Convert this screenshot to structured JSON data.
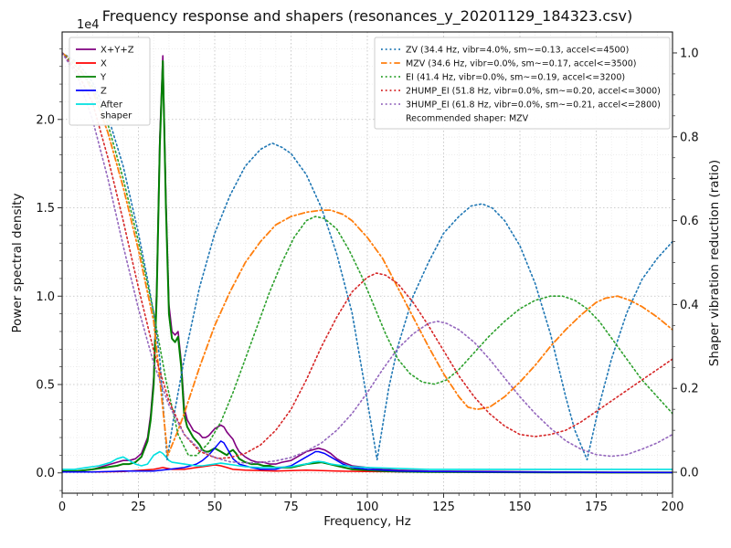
{
  "chart_data": {
    "type": "line",
    "title": "Frequency response and shapers (resonances_y_20201129_184323.csv)",
    "xlabel": "Frequency, Hz",
    "ylabel_left": "Power spectral density",
    "ylabel_right": "Shaper vibration reduction (ratio)",
    "y_left_scale_label": "1e4",
    "xlim": [
      0,
      200
    ],
    "ylim_left": [
      -0.115,
      2.495
    ],
    "ylim_right": [
      -0.05,
      1.05
    ],
    "xticks": [
      0,
      25,
      50,
      75,
      100,
      125,
      150,
      175,
      200
    ],
    "yticks_left": [
      "0.0",
      "0.5",
      "1.0",
      "1.5",
      "2.0"
    ],
    "yticks_left_vals": [
      0,
      0.5,
      1,
      1.5,
      2
    ],
    "yticks_right": [
      "0.0",
      "0.2",
      "0.4",
      "0.6",
      "0.8",
      "1.0"
    ],
    "yticks_right_vals": [
      0,
      0.2,
      0.4,
      0.6,
      0.8,
      1.0
    ],
    "grid": true,
    "legend_left": {
      "entries": [
        {
          "label": "X+Y+Z",
          "color": "#800080",
          "style": "solid"
        },
        {
          "label": "X",
          "color": "#ff0000",
          "style": "solid"
        },
        {
          "label": "Y",
          "color": "#008000",
          "style": "solid"
        },
        {
          "label": "Z",
          "color": "#0000ff",
          "style": "solid"
        },
        {
          "label": "After\nshaper",
          "color": "#00e0e0",
          "style": "solid"
        }
      ]
    },
    "legend_right": {
      "entries": [
        {
          "label": "ZV (34.4 Hz, vibr=4.0%, sm~=0.13, accel<=4500)",
          "color": "#1f77b4",
          "style": "dotted"
        },
        {
          "label": "MZV (34.6 Hz, vibr=0.0%, sm~=0.17, accel<=3500)",
          "color": "#ff7f0e",
          "style": "dashdot"
        },
        {
          "label": "EI (41.4 Hz, vibr=0.0%, sm~=0.19, accel<=3200)",
          "color": "#2ca02c",
          "style": "dotted"
        },
        {
          "label": "2HUMP_EI (51.8 Hz, vibr=0.0%, sm~=0.20, accel<=3000)",
          "color": "#d62728",
          "style": "dotted"
        },
        {
          "label": "3HUMP_EI (61.8 Hz, vibr=0.0%, sm~=0.21, accel<=2800)",
          "color": "#9467bd",
          "style": "dotted"
        },
        {
          "label": "Recommended shaper: MZV",
          "color": null,
          "style": "none"
        }
      ]
    },
    "series": [
      {
        "name": "X+Y+Z",
        "axis": "left",
        "color": "#800080",
        "style": "solid",
        "width": 1.6,
        "x": [
          0,
          5,
          10,
          14,
          18,
          20,
          22,
          24,
          26,
          28,
          29,
          30,
          31,
          32,
          33,
          34,
          35,
          36,
          37,
          38,
          39,
          40,
          41,
          42,
          43,
          44,
          45,
          46,
          47,
          48,
          49,
          50,
          51,
          52,
          53,
          54,
          55,
          56,
          57,
          58,
          60,
          62,
          64,
          66,
          68,
          70,
          72,
          75,
          78,
          80,
          82,
          84,
          86,
          88,
          90,
          92,
          95,
          100,
          105,
          110,
          120,
          140,
          160,
          180,
          200
        ],
        "y": [
          0.01,
          0.01,
          0.02,
          0.04,
          0.06,
          0.07,
          0.07,
          0.08,
          0.11,
          0.2,
          0.33,
          0.54,
          1.05,
          1.9,
          2.36,
          1.55,
          0.95,
          0.8,
          0.78,
          0.8,
          0.63,
          0.37,
          0.3,
          0.27,
          0.24,
          0.23,
          0.22,
          0.2,
          0.2,
          0.21,
          0.23,
          0.25,
          0.26,
          0.27,
          0.26,
          0.23,
          0.21,
          0.19,
          0.15,
          0.12,
          0.09,
          0.07,
          0.06,
          0.06,
          0.05,
          0.05,
          0.06,
          0.07,
          0.1,
          0.12,
          0.13,
          0.14,
          0.13,
          0.11,
          0.08,
          0.06,
          0.04,
          0.03,
          0.02,
          0.015,
          0.01,
          0.008,
          0.005,
          0.004,
          0.003
        ]
      },
      {
        "name": "X",
        "axis": "left",
        "color": "#ff0000",
        "style": "solid",
        "width": 1.5,
        "x": [
          0,
          10,
          20,
          30,
          33,
          36,
          40,
          44,
          46,
          48,
          50,
          52,
          54,
          56,
          60,
          70,
          80,
          90,
          100,
          120,
          140,
          160,
          180,
          200
        ],
        "y": [
          0.005,
          0.005,
          0.008,
          0.02,
          0.03,
          0.02,
          0.02,
          0.03,
          0.035,
          0.04,
          0.045,
          0.04,
          0.03,
          0.02,
          0.015,
          0.01,
          0.015,
          0.01,
          0.008,
          0.005,
          0.004,
          0.003,
          0.002,
          0.002
        ]
      },
      {
        "name": "Y",
        "axis": "left",
        "color": "#008000",
        "style": "solid",
        "width": 2,
        "x": [
          0,
          5,
          10,
          14,
          18,
          20,
          22,
          24,
          26,
          28,
          29,
          30,
          31,
          32,
          33,
          34,
          35,
          36,
          37,
          38,
          39,
          40,
          41,
          42,
          43,
          44,
          45,
          46,
          47,
          48,
          49,
          50,
          51,
          52,
          53,
          54,
          55,
          56,
          57,
          58,
          60,
          62,
          64,
          66,
          68,
          70,
          75,
          80,
          85,
          90,
          95,
          100,
          105,
          110,
          120,
          140,
          160,
          180,
          200
        ],
        "y": [
          0.01,
          0.01,
          0.02,
          0.03,
          0.04,
          0.05,
          0.05,
          0.06,
          0.09,
          0.18,
          0.3,
          0.5,
          1.0,
          1.85,
          2.33,
          1.5,
          0.9,
          0.76,
          0.74,
          0.77,
          0.6,
          0.33,
          0.26,
          0.23,
          0.2,
          0.18,
          0.16,
          0.13,
          0.12,
          0.12,
          0.13,
          0.14,
          0.13,
          0.12,
          0.11,
          0.1,
          0.12,
          0.13,
          0.11,
          0.08,
          0.06,
          0.05,
          0.05,
          0.04,
          0.04,
          0.03,
          0.03,
          0.05,
          0.06,
          0.04,
          0.02,
          0.015,
          0.01,
          0.008,
          0.005,
          0.004,
          0.003,
          0.002,
          0.002
        ]
      },
      {
        "name": "Z",
        "axis": "left",
        "color": "#0000ff",
        "style": "solid",
        "width": 1.5,
        "x": [
          0,
          10,
          20,
          30,
          35,
          40,
          42,
          44,
          46,
          48,
          50,
          51,
          52,
          53,
          54,
          55,
          56,
          58,
          60,
          62,
          65,
          70,
          72,
          75,
          78,
          80,
          82,
          83,
          84,
          86,
          88,
          90,
          92,
          95,
          100,
          105,
          110,
          120,
          140,
          160,
          180,
          200
        ],
        "y": [
          0.005,
          0.005,
          0.01,
          0.01,
          0.02,
          0.03,
          0.04,
          0.05,
          0.07,
          0.1,
          0.14,
          0.16,
          0.18,
          0.17,
          0.14,
          0.11,
          0.08,
          0.05,
          0.04,
          0.03,
          0.02,
          0.02,
          0.03,
          0.04,
          0.07,
          0.09,
          0.11,
          0.12,
          0.12,
          0.11,
          0.09,
          0.07,
          0.05,
          0.03,
          0.02,
          0.015,
          0.01,
          0.008,
          0.005,
          0.004,
          0.003,
          0.002
        ]
      },
      {
        "name": "After shaper",
        "axis": "left",
        "color": "#00e0e0",
        "style": "solid",
        "width": 1.6,
        "x": [
          0,
          4,
          8,
          12,
          14,
          16,
          18,
          20,
          22,
          24,
          26,
          28,
          30,
          31,
          32,
          33,
          34,
          35,
          36,
          38,
          40,
          42,
          44,
          46,
          48,
          50,
          52,
          54,
          56,
          58,
          60,
          65,
          70,
          75,
          78,
          80,
          82,
          84,
          86,
          88,
          90,
          95,
          100,
          110,
          120,
          140,
          160,
          180,
          200
        ],
        "y": [
          0.02,
          0.02,
          0.03,
          0.04,
          0.05,
          0.06,
          0.08,
          0.09,
          0.07,
          0.05,
          0.04,
          0.05,
          0.1,
          0.11,
          0.12,
          0.11,
          0.09,
          0.07,
          0.06,
          0.055,
          0.05,
          0.045,
          0.04,
          0.04,
          0.045,
          0.05,
          0.055,
          0.05,
          0.045,
          0.04,
          0.035,
          0.03,
          0.03,
          0.035,
          0.045,
          0.05,
          0.06,
          0.065,
          0.06,
          0.05,
          0.045,
          0.035,
          0.03,
          0.025,
          0.02,
          0.02,
          0.02,
          0.02,
          0.02
        ]
      },
      {
        "name": "ZV",
        "axis": "right",
        "color": "#1f77b4",
        "style": "dotted",
        "width": 1.6,
        "x": [
          0,
          5,
          10,
          15,
          20,
          25,
          28,
          30,
          32,
          34.4,
          37,
          40,
          45,
          50,
          55,
          60,
          65,
          68.8,
          72,
          75,
          80,
          85,
          90,
          95,
          100,
          103.2,
          107,
          110,
          115,
          120,
          125,
          130,
          134,
          137.6,
          141,
          145,
          150,
          155,
          160,
          165,
          168,
          172,
          176,
          180,
          185,
          190,
          195,
          200
        ],
        "y": [
          1.0,
          0.978,
          0.93,
          0.85,
          0.73,
          0.57,
          0.46,
          0.38,
          0.27,
          0.03,
          0.15,
          0.27,
          0.44,
          0.57,
          0.66,
          0.73,
          0.77,
          0.785,
          0.775,
          0.76,
          0.71,
          0.63,
          0.52,
          0.38,
          0.17,
          0.03,
          0.2,
          0.3,
          0.42,
          0.5,
          0.57,
          0.61,
          0.635,
          0.64,
          0.63,
          0.6,
          0.54,
          0.45,
          0.33,
          0.18,
          0.1,
          0.03,
          0.16,
          0.27,
          0.38,
          0.46,
          0.51,
          0.55
        ]
      },
      {
        "name": "MZV",
        "axis": "right",
        "color": "#ff7f0e",
        "style": "dashdot",
        "width": 1.8,
        "x": [
          0,
          5,
          10,
          15,
          20,
          25,
          30,
          34.6,
          38,
          40,
          45,
          50,
          55,
          60,
          65,
          70,
          75,
          80,
          85,
          88,
          92,
          95,
          100,
          105,
          110,
          115,
          120,
          125,
          130,
          133,
          136,
          140,
          145,
          150,
          155,
          160,
          165,
          170,
          175,
          178,
          182,
          186,
          190,
          195,
          200
        ],
        "y": [
          1.0,
          0.972,
          0.91,
          0.81,
          0.68,
          0.53,
          0.36,
          0.04,
          0.1,
          0.14,
          0.25,
          0.35,
          0.43,
          0.5,
          0.55,
          0.59,
          0.61,
          0.62,
          0.625,
          0.625,
          0.615,
          0.6,
          0.56,
          0.51,
          0.44,
          0.37,
          0.3,
          0.235,
          0.18,
          0.155,
          0.15,
          0.155,
          0.18,
          0.215,
          0.255,
          0.3,
          0.34,
          0.375,
          0.405,
          0.415,
          0.42,
          0.41,
          0.395,
          0.37,
          0.34
        ]
      },
      {
        "name": "EI",
        "axis": "right",
        "color": "#2ca02c",
        "style": "dotted",
        "width": 1.6,
        "x": [
          0,
          5,
          10,
          15,
          20,
          25,
          30,
          34,
          38,
          41.4,
          44,
          48,
          52,
          56,
          60,
          64,
          68,
          72,
          76,
          80,
          83,
          86,
          90,
          94,
          98,
          102,
          106,
          110,
          114,
          118,
          122,
          126,
          130,
          135,
          140,
          145,
          150,
          155,
          160,
          164,
          168,
          172,
          176,
          180,
          185,
          190,
          195,
          200
        ],
        "y": [
          1.0,
          0.965,
          0.92,
          0.83,
          0.7,
          0.55,
          0.38,
          0.22,
          0.09,
          0.04,
          0.04,
          0.07,
          0.12,
          0.19,
          0.27,
          0.35,
          0.43,
          0.5,
          0.56,
          0.6,
          0.61,
          0.605,
          0.58,
          0.53,
          0.47,
          0.4,
          0.33,
          0.27,
          0.235,
          0.215,
          0.21,
          0.22,
          0.245,
          0.285,
          0.325,
          0.36,
          0.39,
          0.41,
          0.42,
          0.42,
          0.41,
          0.39,
          0.36,
          0.32,
          0.27,
          0.22,
          0.18,
          0.14
        ]
      },
      {
        "name": "2HUMP_EI",
        "axis": "right",
        "color": "#d62728",
        "style": "dotted",
        "width": 1.6,
        "x": [
          0,
          5,
          10,
          15,
          20,
          25,
          30,
          35,
          40,
          45,
          50,
          51.8,
          55,
          60,
          65,
          70,
          75,
          80,
          85,
          90,
          95,
          100,
          103,
          106,
          110,
          115,
          120,
          125,
          130,
          135,
          140,
          145,
          150,
          155,
          160,
          165,
          170,
          175,
          180,
          185,
          190,
          195,
          200
        ],
        "y": [
          1.0,
          0.955,
          0.88,
          0.75,
          0.6,
          0.44,
          0.29,
          0.17,
          0.09,
          0.05,
          0.035,
          0.033,
          0.035,
          0.045,
          0.065,
          0.1,
          0.15,
          0.22,
          0.3,
          0.37,
          0.43,
          0.465,
          0.475,
          0.47,
          0.45,
          0.405,
          0.35,
          0.29,
          0.23,
          0.18,
          0.14,
          0.11,
          0.09,
          0.085,
          0.09,
          0.1,
          0.12,
          0.145,
          0.17,
          0.195,
          0.22,
          0.245,
          0.27
        ]
      },
      {
        "name": "3HUMP_EI",
        "axis": "right",
        "color": "#9467bd",
        "style": "dotted",
        "width": 1.6,
        "x": [
          0,
          5,
          10,
          15,
          20,
          25,
          30,
          35,
          40,
          45,
          50,
          55,
          60,
          61.8,
          65,
          70,
          75,
          80,
          85,
          90,
          95,
          100,
          105,
          110,
          115,
          120,
          123,
          126,
          130,
          135,
          140,
          145,
          150,
          155,
          160,
          165,
          170,
          175,
          180,
          185,
          190,
          195,
          200
        ],
        "y": [
          1.0,
          0.945,
          0.84,
          0.7,
          0.54,
          0.39,
          0.26,
          0.16,
          0.09,
          0.055,
          0.035,
          0.025,
          0.022,
          0.022,
          0.023,
          0.027,
          0.035,
          0.05,
          0.07,
          0.1,
          0.14,
          0.19,
          0.245,
          0.295,
          0.33,
          0.355,
          0.36,
          0.355,
          0.34,
          0.31,
          0.27,
          0.225,
          0.18,
          0.14,
          0.105,
          0.075,
          0.055,
          0.042,
          0.038,
          0.042,
          0.055,
          0.07,
          0.09
        ]
      }
    ]
  }
}
